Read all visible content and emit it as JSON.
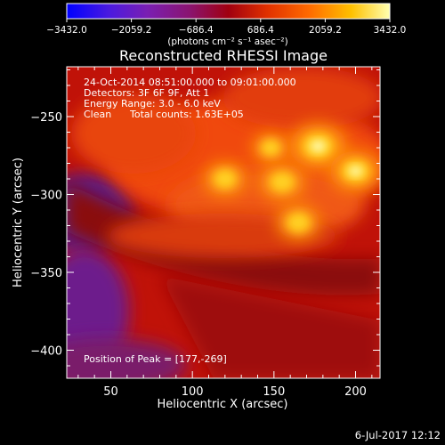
{
  "chart_data": {
    "type": "heatmap",
    "title": "Reconstructed RHESSI Image",
    "xlabel": "Heliocentric X (arcsec)",
    "ylabel": "Heliocentric Y (arcsec)",
    "xlim": [
      23,
      215
    ],
    "ylim": [
      -418,
      -218
    ],
    "x_ticks": [
      50,
      100,
      150,
      200
    ],
    "y_ticks": [
      -250,
      -300,
      -350,
      -400
    ],
    "colorbar": {
      "unit": "(photons cm⁻² s⁻¹ asec⁻²)",
      "range": [
        -3432.0,
        3432.0
      ],
      "tick_values": [
        -3432.0,
        -2059.2,
        -686.4,
        686.4,
        2059.2,
        3432.0
      ],
      "tick_labels": [
        "−3432.0",
        "−2059.2",
        "−686.4",
        "686.4",
        "2059.2",
        "3432.0"
      ]
    },
    "annotations": [
      "24-Oct-2014 08:51:00.000 to 09:01:00.000",
      "Detectors: 3F 6F 9F, Att 1",
      "Energy Range: 3.0 - 6.0 keV",
      "Clean",
      "Total counts: 1.63E+05"
    ],
    "peak_label": "Position of Peak = [177,-269]",
    "peak": [
      177,
      -269
    ],
    "sources": [
      {
        "x": 177,
        "y": -269,
        "value": 3432
      },
      {
        "x": 200,
        "y": -285,
        "value": 3000
      },
      {
        "x": 120,
        "y": -290,
        "value": 2300
      },
      {
        "x": 155,
        "y": -292,
        "value": 2500
      },
      {
        "x": 165,
        "y": -318,
        "value": 2400
      },
      {
        "x": 148,
        "y": -270,
        "value": 1900
      }
    ]
  },
  "footer_date": "6-Jul-2017 12:12"
}
